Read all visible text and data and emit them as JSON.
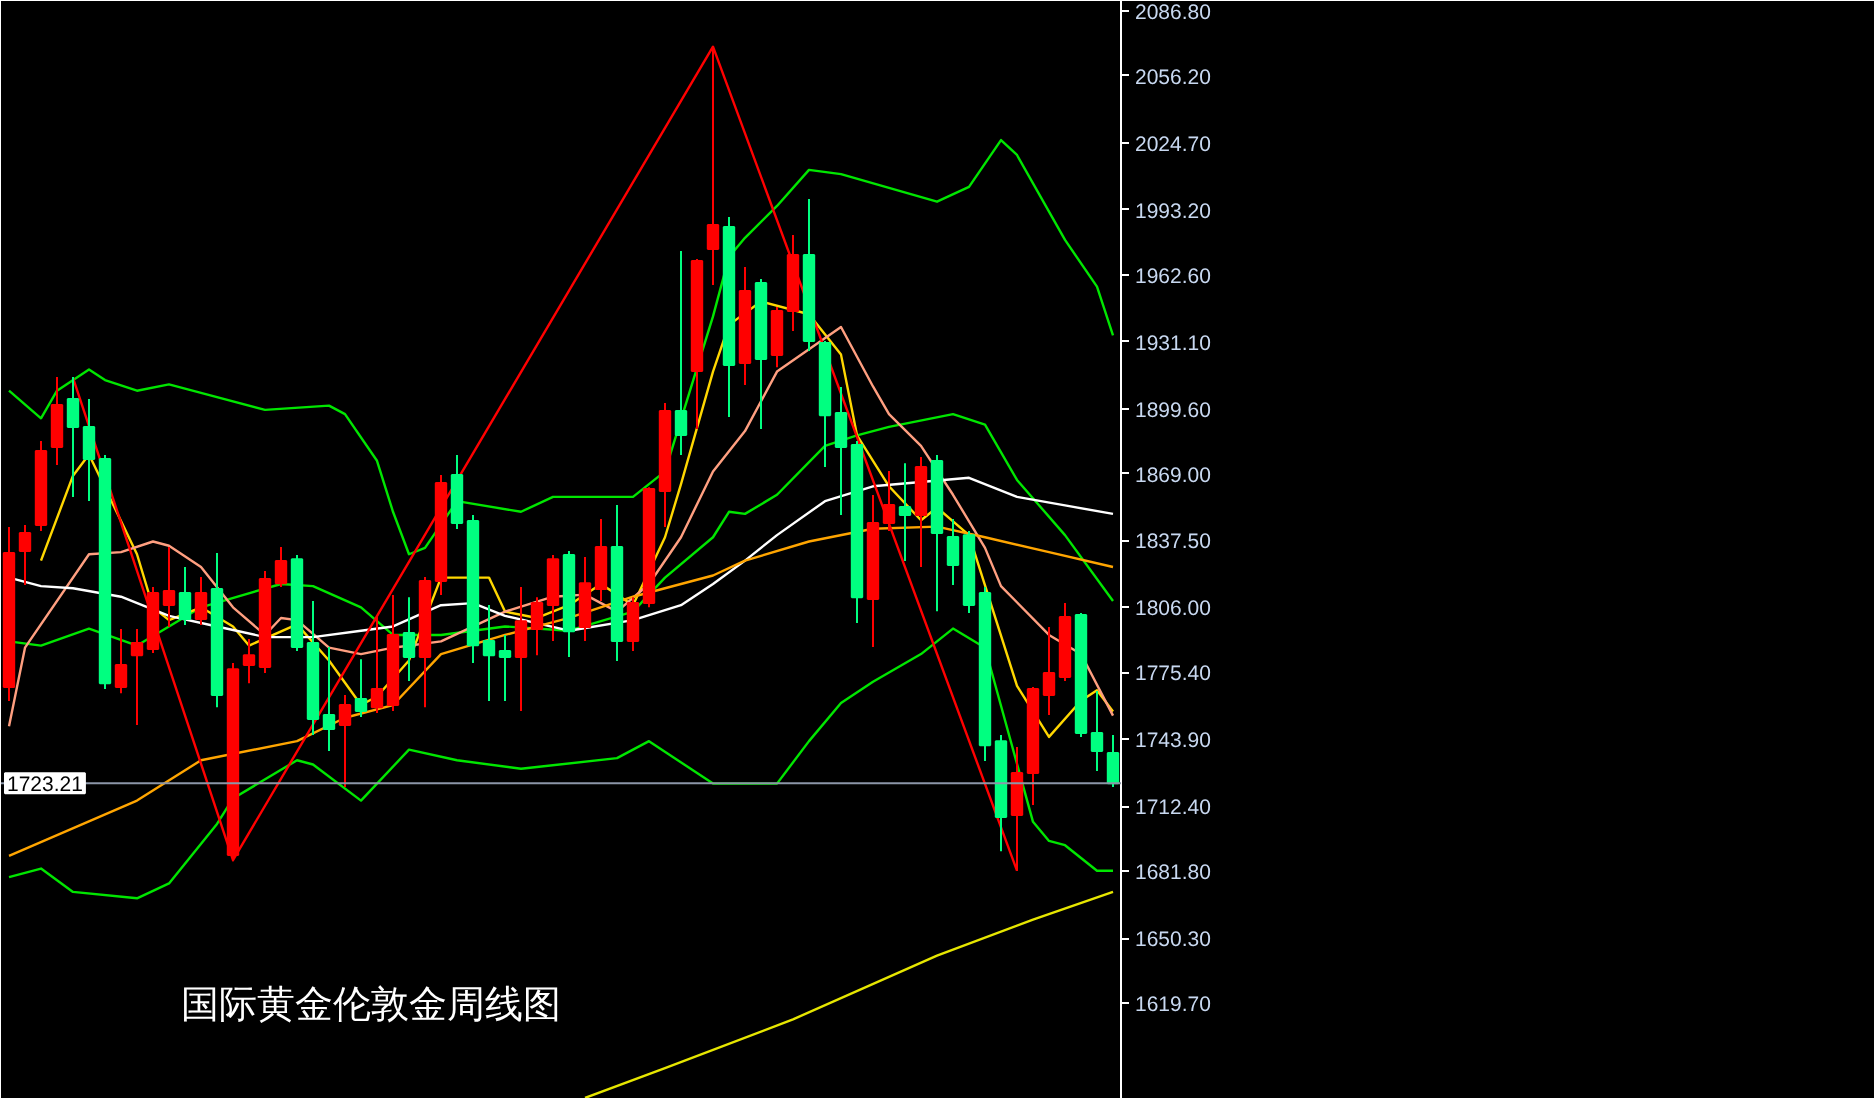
{
  "chart_data": {
    "type": "candlestick",
    "title": "国际黄金伦敦金周线图",
    "categories": [
      null,
      null,
      null,
      null,
      null,
      null,
      null,
      null,
      null,
      null,
      null,
      null,
      null,
      null,
      null,
      null,
      null,
      null,
      null,
      null,
      null,
      null,
      null,
      null,
      null,
      null,
      null,
      null,
      null,
      null,
      null,
      null,
      null,
      null,
      null,
      null,
      null,
      null,
      null,
      null,
      null,
      null,
      null,
      null,
      null,
      null,
      null,
      null,
      null,
      null,
      null,
      null,
      null,
      null,
      null,
      null,
      null,
      null,
      null,
      null,
      null,
      null,
      null,
      null,
      null,
      null,
      null,
      null,
      null,
      null
    ],
    "ohlc": [
      [
        1768.5,
        1843.8,
        1761.9,
        1831.6
      ],
      [
        1832.5,
        1844.8,
        1816.5,
        1841.0
      ],
      [
        1844.8,
        1884.3,
        1842.0,
        1879.6
      ],
      [
        1881.5,
        1914.4,
        1873.0,
        1901.3
      ],
      [
        1904.1,
        1914.4,
        1857.9,
        1890.9
      ],
      [
        1890.9,
        1904.1,
        1856.1,
        1875.8
      ],
      [
        1875.8,
        1877.7,
        1767.5,
        1770.3
      ],
      [
        1768.5,
        1795.8,
        1765.6,
        1778.8
      ],
      [
        1783.5,
        1795.8,
        1750.6,
        1789.2
      ],
      [
        1786.4,
        1815.6,
        1784.5,
        1812.7
      ],
      [
        1807.1,
        1834.4,
        1796.7,
        1813.7
      ],
      [
        1812.7,
        1825.0,
        1797.7,
        1800.5
      ],
      [
        1800.5,
        1820.3,
        1797.7,
        1812.7
      ],
      [
        1814.6,
        1831.6,
        1759.0,
        1764.7
      ],
      [
        1689.4,
        1779.8,
        1686.5,
        1776.9
      ],
      [
        1778.8,
        1791.1,
        1770.3,
        1783.5
      ],
      [
        1777.9,
        1823.1,
        1775.1,
        1819.3
      ],
      [
        1817.4,
        1834.4,
        1815.6,
        1827.8
      ],
      [
        1828.7,
        1830.6,
        1785.4,
        1787.3
      ],
      [
        1789.2,
        1809.0,
        1745.9,
        1753.4
      ],
      [
        1755.3,
        1787.3,
        1738.3,
        1748.7
      ],
      [
        1750.6,
        1764.7,
        1721.4,
        1760.0
      ],
      [
        1762.8,
        1781.6,
        1754.4,
        1757.2
      ],
      [
        1759.0,
        1801.4,
        1756.2,
        1767.5
      ],
      [
        1760.0,
        1811.8,
        1757.2,
        1793.0
      ],
      [
        1793.9,
        1810.8,
        1771.3,
        1782.6
      ],
      [
        1782.6,
        1820.3,
        1759.0,
        1818.4
      ],
      [
        1818.4,
        1868.3,
        1811.8,
        1864.5
      ],
      [
        1868.3,
        1877.7,
        1842.9,
        1845.7
      ],
      [
        1846.6,
        1849.5,
        1779.8,
        1788.2
      ],
      [
        1790.1,
        1807.1,
        1761.9,
        1783.5
      ],
      [
        1785.4,
        1793.0,
        1761.9,
        1782.6
      ],
      [
        1782.6,
        1815.6,
        1757.2,
        1799.5
      ],
      [
        1795.8,
        1810.8,
        1783.5,
        1808.0
      ],
      [
        1807.1,
        1830.6,
        1790.1,
        1828.7
      ],
      [
        1830.6,
        1832.5,
        1782.6,
        1794.8
      ],
      [
        1796.7,
        1829.7,
        1790.1,
        1817.4
      ],
      [
        1814.6,
        1847.6,
        1809.0,
        1834.4
      ],
      [
        1834.4,
        1854.2,
        1780.7,
        1790.1
      ],
      [
        1790.1,
        1810.8,
        1785.4,
        1808.0
      ],
      [
        1808.0,
        1862.6,
        1806.1,
        1861.7
      ],
      [
        1860.8,
        1902.2,
        1843.8,
        1898.4
      ],
      [
        1898.4,
        1973.8,
        1877.7,
        1887.1
      ],
      [
        1917.3,
        1970.0,
        1890.0,
        1969.1
      ],
      [
        1974.7,
        2069.8,
        1957.8,
        1986.0
      ],
      [
        1985.1,
        1989.8,
        1895.6,
        1920.1
      ],
      [
        1921.0,
        1966.2,
        1910.7,
        1955.0
      ],
      [
        1958.7,
        1960.6,
        1890.0,
        1922.9
      ],
      [
        1924.8,
        1947.4,
        1919.1,
        1945.5
      ],
      [
        1945.5,
        1981.3,
        1936.1,
        1971.9
      ],
      [
        1971.9,
        1998.3,
        1926.7,
        1931.4
      ],
      [
        1930.5,
        1931.4,
        1872.1,
        1896.5
      ],
      [
        1897.5,
        1909.7,
        1849.5,
        1881.5
      ],
      [
        1882.4,
        1884.3,
        1798.6,
        1810.8
      ],
      [
        1809.9,
        1858.9,
        1787.3,
        1845.7
      ],
      [
        1845.7,
        1870.2,
        1842.0,
        1854.2
      ],
      [
        1853.2,
        1873.9,
        1827.8,
        1849.5
      ],
      [
        1849.5,
        1876.8,
        1825.0,
        1872.1
      ],
      [
        1874.9,
        1877.7,
        1804.2,
        1841.0
      ],
      [
        1839.1,
        1847.6,
        1816.5,
        1825.9
      ],
      [
        1840.0,
        1842.0,
        1803.3,
        1807.1
      ],
      [
        1812.7,
        1815.6,
        1733.6,
        1741.1
      ],
      [
        1743.0,
        1745.9,
        1691.2,
        1707.3
      ],
      [
        1708.2,
        1740.2,
        1681.8,
        1728.0
      ],
      [
        1728.0,
        1768.5,
        1712.9,
        1767.5
      ],
      [
        1764.7,
        1796.7,
        1755.3,
        1775.1
      ],
      [
        1773.2,
        1808.0,
        1771.3,
        1801.4
      ],
      [
        1802.4,
        1803.3,
        1745.0,
        1746.8
      ],
      [
        1746.8,
        1766.6,
        1728.9,
        1738.3
      ],
      [
        1737.4,
        1745.9,
        1721.4,
        1723.2
      ]
    ],
    "colors": [
      "#ff0000",
      "#ff0000",
      "#ff0000",
      "#ff0000",
      "#00ff80",
      "#00ff80",
      "#00ff80",
      "#ff0000",
      "#ff0000",
      "#ff0000",
      "#ff0000",
      "#00ff80",
      "#ff0000",
      "#00ff80",
      "#ff0000",
      "#ff0000",
      "#ff0000",
      "#ff0000",
      "#00ff80",
      "#00ff80",
      "#00ff80",
      "#ff0000",
      "#00ff80",
      "#ff0000",
      "#ff0000",
      "#00ff80",
      "#ff0000",
      "#ff0000",
      "#00ff80",
      "#00ff80",
      "#00ff80",
      "#00ff80",
      "#ff0000",
      "#ff0000",
      "#ff0000",
      "#00ff80",
      "#ff0000",
      "#ff0000",
      "#00ff80",
      "#ff0000",
      "#ff0000",
      "#ff0000",
      "#00ff80",
      "#ff0000",
      "#ff0000",
      "#00ff80",
      "#ff0000",
      "#00ff80",
      "#ff0000",
      "#ff0000",
      "#00ff80",
      "#00ff80",
      "#00ff80",
      "#00ff80",
      "#ff0000",
      "#ff0000",
      "#00ff80",
      "#ff0000",
      "#00ff80",
      "#00ff80",
      "#00ff80",
      "#00ff80",
      "#00ff80",
      "#ff0000",
      "#ff0000",
      "#ff0000",
      "#ff0000",
      "#00ff80",
      "#00ff80",
      "#00ff80"
    ],
    "series": [
      {
        "type": "line",
        "color": "#00e600",
        "values": [
          1908,
          null,
          1895,
          1908,
          null,
          1918,
          1913,
          null,
          1908,
          null,
          1911,
          null,
          1907,
          null,
          null,
          null,
          1899,
          null,
          null,
          null,
          1901,
          1897,
          null,
          1875,
          1851,
          1831,
          1834,
          null,
          1856,
          null,
          null,
          null,
          1851,
          null,
          1858,
          null,
          null,
          null,
          null,
          1858,
          null,
          1870,
          null,
          null,
          1943,
          1971,
          1980,
          null,
          1995,
          null,
          2012,
          null,
          2010,
          null,
          null,
          null,
          null,
          null,
          1997,
          null,
          2004,
          null,
          2026,
          2019,
          null,
          null,
          1979,
          null,
          1957,
          1934
        ]
      },
      {
        "type": "line",
        "color": "#00e600",
        "values": [
          1790,
          null,
          1788,
          null,
          null,
          1796,
          null,
          null,
          1788,
          null,
          1797,
          null,
          1806,
          null,
          null,
          null,
          null,
          1817,
          null,
          1816,
          null,
          null,
          1806,
          null,
          1793,
          null,
          null,
          1793,
          null,
          null,
          null,
          1797,
          null,
          null,
          null,
          1795,
          null,
          null,
          null,
          1804,
          null,
          1820,
          null,
          null,
          1839,
          1851,
          1850,
          null,
          1859,
          null,
          null,
          1882,
          null,
          1887,
          null,
          1891,
          null,
          null,
          null,
          1897,
          null,
          1892,
          null,
          1866,
          null,
          null,
          1840,
          null,
          null,
          1809
        ]
      },
      {
        "type": "line",
        "color": "#00e600",
        "values": [
          1679,
          null,
          1683,
          null,
          1672,
          null,
          null,
          null,
          1669,
          null,
          1676,
          null,
          null,
          1704,
          1716,
          null,
          null,
          null,
          1734,
          1732,
          null,
          null,
          1715,
          null,
          null,
          1739,
          null,
          null,
          1734,
          null,
          null,
          null,
          1730,
          null,
          null,
          null,
          null,
          null,
          1735,
          null,
          1743,
          null,
          null,
          null,
          1723,
          null,
          null,
          null,
          1723,
          null,
          1743,
          null,
          1761,
          null,
          1771,
          null,
          null,
          1784,
          null,
          1796,
          null,
          1787,
          null,
          null,
          1705,
          1696,
          1694,
          null,
          1682,
          1682
        ]
      },
      {
        "type": "line",
        "color": "#ffd700",
        "values": [
          null,
          null,
          1828,
          null,
          1868,
          1878,
          null,
          null,
          1831,
          1806,
          1800,
          null,
          1806,
          null,
          1797,
          1788,
          null,
          null,
          1798,
          null,
          1781,
          null,
          1760,
          1764,
          null,
          1781,
          null,
          1820,
          null,
          null,
          1820,
          1804,
          null,
          1801,
          null,
          1807,
          null,
          1817,
          null,
          1807,
          null,
          1839,
          1864,
          null,
          1917,
          1939,
          null,
          1950,
          null,
          null,
          1944,
          null,
          1925,
          1887,
          null,
          1863,
          null,
          1847,
          1853,
          null,
          1840,
          null,
          null,
          1769,
          null,
          1745,
          null,
          1762,
          1767,
          1757
        ]
      },
      {
        "type": "line",
        "color": "#ff9f80",
        "values": [
          1750,
          1787,
          null,
          null,
          null,
          1831,
          null,
          1832,
          null,
          1837,
          1835,
          null,
          1825,
          null,
          1806,
          null,
          1793,
          1801,
          1800,
          null,
          1787,
          null,
          1784,
          null,
          1787,
          null,
          null,
          1790,
          null,
          null,
          null,
          1804,
          null,
          null,
          1811,
          null,
          1812,
          null,
          1804,
          null,
          1817,
          null,
          1839,
          null,
          1870,
          null,
          1889,
          null,
          1917,
          null,
          null,
          null,
          1938,
          null,
          1910,
          1897,
          null,
          1882,
          null,
          1859,
          null,
          1834,
          1816,
          null,
          null,
          1793,
          null,
          1784,
          null,
          1755
        ]
      },
      {
        "type": "line",
        "color": "#ffffff",
        "values": [
          1820,
          null,
          1816,
          null,
          1815,
          null,
          null,
          1811,
          null,
          null,
          1802,
          null,
          null,
          1797,
          null,
          null,
          1792,
          null,
          null,
          1792,
          null,
          null,
          1795,
          null,
          1797,
          null,
          null,
          1807,
          null,
          1808,
          null,
          1802,
          null,
          null,
          null,
          1795,
          null,
          null,
          null,
          1800,
          null,
          null,
          1807,
          null,
          1817,
          null,
          1828,
          null,
          1840,
          null,
          null,
          1856,
          null,
          null,
          1863,
          null,
          null,
          null,
          null,
          null,
          1867,
          null,
          null,
          1858,
          null,
          null,
          1854,
          null,
          null,
          1850
        ]
      },
      {
        "type": "line",
        "color": "#ffa500",
        "values": [
          1689,
          null,
          null,
          null,
          null,
          null,
          null,
          null,
          1715,
          null,
          null,
          null,
          1734,
          null,
          null,
          null,
          null,
          null,
          1743,
          null,
          null,
          1754,
          null,
          null,
          1760,
          null,
          null,
          1784,
          null,
          null,
          null,
          1793,
          null,
          null,
          null,
          1801,
          null,
          null,
          null,
          1811,
          null,
          null,
          null,
          null,
          1821,
          null,
          1828,
          null,
          null,
          null,
          1837,
          null,
          null,
          null,
          1843,
          null,
          null,
          null,
          1844,
          null,
          null,
          1839,
          null,
          null,
          null,
          1832,
          null,
          null,
          null,
          1825
        ]
      },
      {
        "type": "line",
        "color": "#e6e600",
        "values": [
          null,
          null,
          null,
          null,
          null,
          null,
          null,
          null,
          null,
          null,
          null,
          null,
          null,
          null,
          null,
          null,
          null,
          null,
          null,
          null,
          null,
          null,
          null,
          null,
          null,
          null,
          null,
          null,
          null,
          null,
          null,
          null,
          null,
          null,
          null,
          null,
          1575,
          null,
          null,
          null,
          null,
          1589,
          null,
          null,
          null,
          null,
          null,
          null,
          null,
          1612,
          null,
          null,
          null,
          null,
          null,
          null,
          null,
          null,
          1642,
          null,
          null,
          null,
          null,
          null,
          1659,
          null,
          null,
          null,
          null,
          1672
        ]
      },
      {
        "type": "line",
        "color": "#ff0000",
        "values": [
          null,
          null,
          null,
          null,
          1914,
          null,
          null,
          null,
          null,
          null,
          null,
          null,
          null,
          null,
          1687,
          null,
          null,
          null,
          null,
          null,
          null,
          null,
          null,
          null,
          null,
          null,
          null,
          null,
          null,
          null,
          null,
          null,
          null,
          null,
          null,
          null,
          null,
          null,
          null,
          null,
          null,
          null,
          null,
          null,
          2070,
          null,
          null,
          null,
          null,
          null,
          null,
          null,
          null,
          null,
          null,
          null,
          null,
          null,
          null,
          null,
          null,
          null,
          null,
          1682,
          null,
          null,
          null,
          null,
          null,
          null
        ]
      }
    ],
    "ylim": [
      1574.5,
      2091.5
    ],
    "yticks": [
      {
        "value": 2086.8,
        "label": "2086.80"
      },
      {
        "value": 2056.2,
        "label": "2056.20"
      },
      {
        "value": 2024.7,
        "label": "2024.70"
      },
      {
        "value": 1993.2,
        "label": "1993.20"
      },
      {
        "value": 1962.6,
        "label": "1962.60"
      },
      {
        "value": 1931.1,
        "label": "1931.10"
      },
      {
        "value": 1899.6,
        "label": "1899.60"
      },
      {
        "value": 1869.0,
        "label": "1869.00"
      },
      {
        "value": 1837.5,
        "label": "1837.50"
      },
      {
        "value": 1806.0,
        "label": "1806.00"
      },
      {
        "value": 1775.4,
        "label": "1775.40"
      },
      {
        "value": 1743.9,
        "label": "1743.90"
      },
      {
        "value": 1712.4,
        "label": "1712.40"
      },
      {
        "value": 1681.8,
        "label": "1681.80"
      },
      {
        "value": 1650.3,
        "label": "1650.30"
      },
      {
        "value": 1619.7,
        "label": "1619.70"
      }
    ],
    "ref_lines": [
      {
        "axis": "y",
        "value": 1723.21,
        "label": "1723.21",
        "color": "#8c96a8"
      }
    ],
    "tick_labels": "y",
    "grid": false
  }
}
